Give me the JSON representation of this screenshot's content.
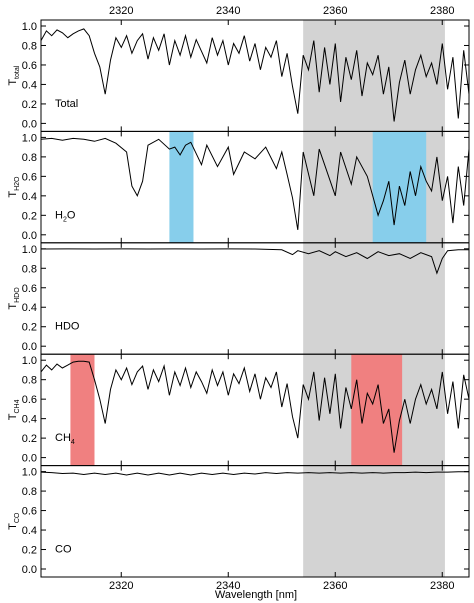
{
  "chart_data": {
    "type": "line",
    "xlabel": "Wavelength [nm]",
    "xlim": [
      2305,
      2385
    ],
    "x_ticks": [
      "2320",
      "2340",
      "2360",
      "2380"
    ],
    "x_tick_values": [
      2320,
      2340,
      2360,
      2380
    ],
    "shared_gray_band": [
      2354,
      2380.5
    ],
    "panels": [
      {
        "id": "total",
        "label": "Total",
        "ylabel_main": "T",
        "ylabel_sub": "total",
        "ylim": [
          0,
          1
        ],
        "yticks": [
          "0.0",
          "0.2",
          "0.4",
          "0.6",
          "0.8",
          "1.0"
        ],
        "highlight_bands": []
      },
      {
        "id": "h2o",
        "label_main": "H",
        "label_sub": "2",
        "label_end": "O",
        "ylabel_main": "T",
        "ylabel_sub": "H2O",
        "ylim": [
          0,
          1
        ],
        "yticks": [
          "0.0",
          "0.2",
          "0.4",
          "0.6",
          "0.8",
          "1.0"
        ],
        "highlight_bands": [
          {
            "x": [
              2329,
              2333.5
            ],
            "color": "#87CEEB"
          },
          {
            "x": [
              2367,
              2377
            ],
            "color": "#87CEEB"
          }
        ]
      },
      {
        "id": "hdo",
        "label": "HDO",
        "ylabel_main": "T",
        "ylabel_sub": "HDO",
        "ylim": [
          0,
          1
        ],
        "yticks": [
          "0.0",
          "0.2",
          "0.4",
          "0.6",
          "0.8",
          "1.0"
        ],
        "highlight_bands": []
      },
      {
        "id": "ch4",
        "label_main": "CH",
        "label_sub": "4",
        "ylabel_main": "T",
        "ylabel_sub": "CH4",
        "ylim": [
          0,
          1
        ],
        "yticks": [
          "0.0",
          "0.2",
          "0.4",
          "0.6",
          "0.8",
          "1.0"
        ],
        "highlight_bands": [
          {
            "x": [
              2310.5,
              2315
            ],
            "color": "#F08080"
          },
          {
            "x": [
              2363,
              2372.5
            ],
            "color": "#F08080"
          }
        ]
      },
      {
        "id": "co",
        "label": "CO",
        "ylabel_main": "T",
        "ylabel_sub": "CO",
        "ylim": [
          0,
          1
        ],
        "yticks": [
          "0.0",
          "0.2",
          "0.4",
          "0.6",
          "0.8",
          "1.0"
        ],
        "highlight_bands": []
      }
    ],
    "series": [
      {
        "panel": "total",
        "x": [
          2305,
          2306,
          2307,
          2308,
          2309,
          2310,
          2311,
          2312,
          2313,
          2314,
          2315,
          2316,
          2317,
          2318,
          2319,
          2320,
          2321,
          2322,
          2323,
          2324,
          2325,
          2326,
          2327,
          2328,
          2329,
          2330,
          2331,
          2332,
          2333,
          2334,
          2335,
          2336,
          2337,
          2338,
          2339,
          2340,
          2341,
          2342,
          2343,
          2344,
          2345,
          2346,
          2347,
          2348,
          2349,
          2350,
          2351,
          2352,
          2353,
          2354,
          2355,
          2356,
          2357,
          2358,
          2359,
          2360,
          2361,
          2362,
          2363,
          2364,
          2365,
          2366,
          2367,
          2368,
          2369,
          2370,
          2371,
          2372,
          2373,
          2374,
          2375,
          2376,
          2377,
          2378,
          2379,
          2380,
          2381,
          2382,
          2383,
          2384,
          2385
        ],
        "y": [
          0.85,
          0.95,
          0.9,
          0.96,
          0.93,
          0.88,
          0.92,
          0.95,
          0.97,
          0.9,
          0.72,
          0.58,
          0.3,
          0.65,
          0.88,
          0.78,
          0.9,
          0.72,
          0.85,
          0.92,
          0.66,
          0.88,
          0.75,
          0.92,
          0.6,
          0.85,
          0.7,
          0.9,
          0.68,
          0.86,
          0.74,
          0.62,
          0.88,
          0.7,
          0.85,
          0.6,
          0.82,
          0.72,
          0.9,
          0.64,
          0.82,
          0.55,
          0.78,
          0.68,
          0.85,
          0.48,
          0.72,
          0.38,
          0.1,
          0.7,
          0.55,
          0.85,
          0.32,
          0.78,
          0.4,
          0.82,
          0.22,
          0.68,
          0.45,
          0.75,
          0.28,
          0.62,
          0.5,
          0.7,
          0.3,
          0.58,
          0.02,
          0.42,
          0.65,
          0.3,
          0.55,
          0.7,
          0.48,
          0.62,
          0.4,
          0.82,
          0.35,
          0.68,
          0.05,
          0.75,
          0.3
        ]
      },
      {
        "panel": "h2o",
        "x": [
          2305,
          2307,
          2309,
          2311,
          2313,
          2315,
          2317,
          2319,
          2321,
          2322,
          2323,
          2324,
          2325,
          2327,
          2329,
          2330,
          2331,
          2332,
          2333,
          2335,
          2336,
          2338,
          2340,
          2341,
          2343,
          2345,
          2347,
          2349,
          2350,
          2351,
          2352,
          2353,
          2354,
          2356,
          2357,
          2358,
          2360,
          2361,
          2363,
          2364,
          2366,
          2367,
          2368,
          2369,
          2370,
          2371,
          2372,
          2373,
          2374,
          2375,
          2376,
          2377,
          2378,
          2379,
          2380,
          2381,
          2382,
          2383,
          2384,
          2385
        ],
        "y": [
          0.98,
          0.99,
          0.97,
          0.99,
          0.98,
          0.96,
          0.99,
          0.94,
          0.85,
          0.5,
          0.4,
          0.55,
          0.92,
          0.98,
          0.88,
          0.9,
          0.82,
          0.92,
          0.95,
          0.72,
          0.92,
          0.7,
          0.9,
          0.62,
          0.85,
          0.78,
          0.9,
          0.68,
          0.85,
          0.62,
          0.38,
          0.05,
          0.85,
          0.4,
          0.88,
          0.72,
          0.4,
          0.85,
          0.52,
          0.8,
          0.6,
          0.4,
          0.2,
          0.35,
          0.55,
          0.1,
          0.5,
          0.3,
          0.65,
          0.4,
          0.7,
          0.55,
          0.45,
          0.8,
          0.35,
          0.6,
          0.12,
          0.7,
          0.3,
          0.88
        ]
      },
      {
        "panel": "hdo",
        "x": [
          2305,
          2310,
          2315,
          2320,
          2325,
          2330,
          2335,
          2340,
          2345,
          2350,
          2352,
          2353,
          2355,
          2357,
          2359,
          2360,
          2362,
          2364,
          2366,
          2368,
          2370,
          2372,
          2374,
          2376,
          2378,
          2379,
          2380,
          2381,
          2383,
          2385
        ],
        "y": [
          0.998,
          0.999,
          0.998,
          0.999,
          0.998,
          0.999,
          0.998,
          0.999,
          0.998,
          0.99,
          0.94,
          0.98,
          0.95,
          0.98,
          0.93,
          0.97,
          0.92,
          0.96,
          0.9,
          0.97,
          0.93,
          0.95,
          0.9,
          0.96,
          0.92,
          0.75,
          0.9,
          0.98,
          0.99,
          0.99
        ]
      },
      {
        "panel": "ch4",
        "x": [
          2305,
          2306,
          2307,
          2308,
          2309,
          2310,
          2311,
          2312,
          2313,
          2314,
          2315,
          2316,
          2317,
          2318,
          2319,
          2320,
          2321,
          2322,
          2323,
          2324,
          2325,
          2326,
          2327,
          2328,
          2329,
          2330,
          2331,
          2332,
          2333,
          2334,
          2335,
          2336,
          2337,
          2338,
          2339,
          2340,
          2341,
          2342,
          2343,
          2344,
          2345,
          2346,
          2347,
          2348,
          2349,
          2350,
          2351,
          2352,
          2353,
          2354,
          2355,
          2356,
          2357,
          2358,
          2359,
          2360,
          2361,
          2362,
          2363,
          2364,
          2365,
          2366,
          2367,
          2368,
          2369,
          2370,
          2371,
          2372,
          2373,
          2374,
          2375,
          2376,
          2377,
          2378,
          2379,
          2380,
          2381,
          2382,
          2383,
          2384,
          2385
        ],
        "y": [
          0.88,
          0.95,
          0.9,
          0.96,
          0.92,
          0.95,
          0.98,
          0.99,
          0.99,
          0.98,
          0.8,
          0.6,
          0.35,
          0.7,
          0.9,
          0.8,
          0.92,
          0.75,
          0.88,
          0.94,
          0.7,
          0.9,
          0.78,
          0.94,
          0.64,
          0.88,
          0.74,
          0.92,
          0.72,
          0.88,
          0.78,
          0.66,
          0.9,
          0.74,
          0.88,
          0.64,
          0.86,
          0.76,
          0.92,
          0.68,
          0.86,
          0.6,
          0.82,
          0.72,
          0.88,
          0.52,
          0.76,
          0.42,
          0.2,
          0.75,
          0.6,
          0.88,
          0.38,
          0.82,
          0.45,
          0.86,
          0.3,
          0.72,
          0.5,
          0.8,
          0.35,
          0.66,
          0.55,
          0.75,
          0.35,
          0.5,
          0.05,
          0.38,
          0.6,
          0.35,
          0.6,
          0.75,
          0.55,
          0.7,
          0.5,
          0.88,
          0.45,
          0.78,
          0.3,
          0.85,
          0.6
        ]
      },
      {
        "panel": "co",
        "x": [
          2305,
          2307,
          2309,
          2311,
          2313,
          2315,
          2317,
          2319,
          2321,
          2323,
          2325,
          2327,
          2329,
          2331,
          2333,
          2335,
          2337,
          2339,
          2341,
          2343,
          2345,
          2347,
          2349,
          2351,
          2353,
          2355,
          2357,
          2359,
          2361,
          2363,
          2365,
          2367,
          2369,
          2371,
          2373,
          2375,
          2377,
          2379,
          2381,
          2383,
          2385
        ],
        "y": [
          0.995,
          0.99,
          0.98,
          0.985,
          0.97,
          0.985,
          0.97,
          0.985,
          0.965,
          0.985,
          0.965,
          0.985,
          0.965,
          0.985,
          0.965,
          0.985,
          0.97,
          0.985,
          0.97,
          0.985,
          0.975,
          0.99,
          0.98,
          0.99,
          0.985,
          0.99,
          0.985,
          0.99,
          0.985,
          0.99,
          0.985,
          0.99,
          0.985,
          0.99,
          0.99,
          0.995,
          0.99,
          0.995,
          0.995,
          0.998,
          0.998
        ]
      }
    ]
  }
}
